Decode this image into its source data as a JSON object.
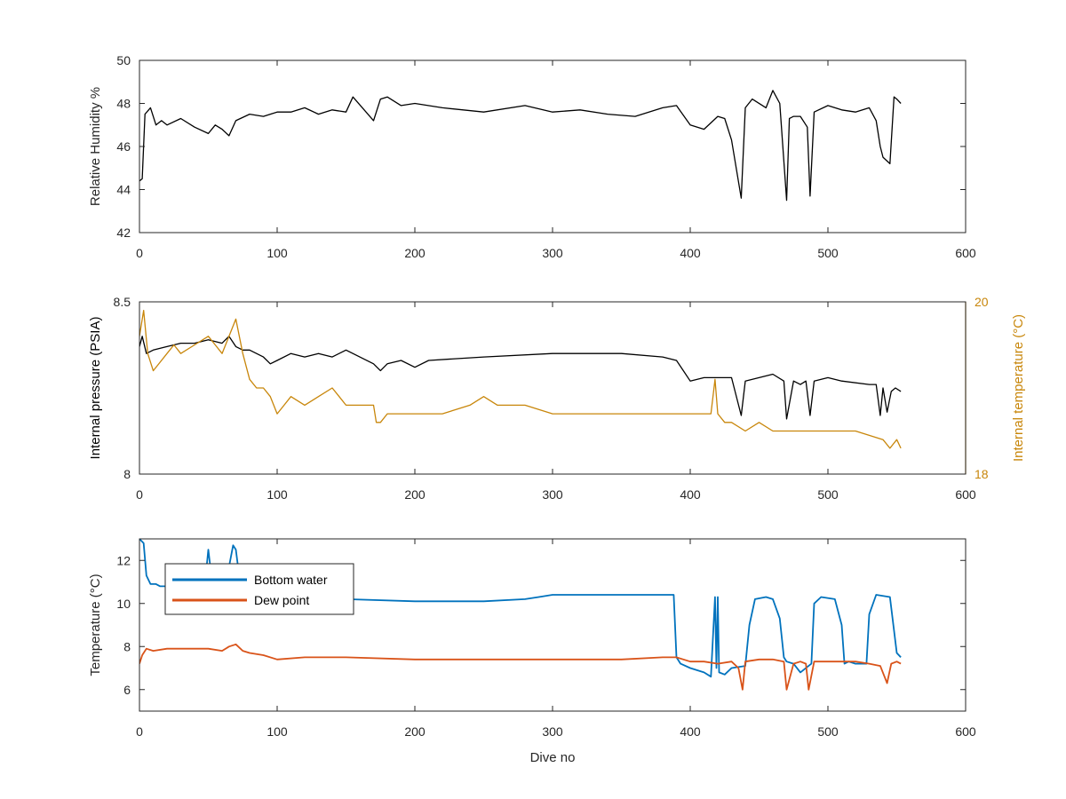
{
  "chart_data": [
    {
      "type": "line",
      "title": "",
      "xlabel": "",
      "ylabel": "Relative Humidity %",
      "xlim": [
        0,
        600
      ],
      "ylim": [
        42,
        50
      ],
      "xticks": [
        0,
        100,
        200,
        300,
        400,
        500,
        600
      ],
      "yticks": [
        42,
        44,
        46,
        48,
        50
      ],
      "grid": false,
      "series": [
        {
          "color": "#000000",
          "x": [
            0,
            2,
            4,
            8,
            12,
            16,
            20,
            30,
            40,
            50,
            55,
            60,
            65,
            70,
            80,
            90,
            100,
            110,
            120,
            130,
            140,
            150,
            155,
            170,
            175,
            180,
            190,
            200,
            220,
            250,
            280,
            300,
            320,
            340,
            360,
            380,
            390,
            400,
            410,
            420,
            425,
            430,
            437,
            440,
            445,
            455,
            460,
            465,
            470,
            472,
            475,
            480,
            485,
            487,
            490,
            500,
            510,
            520,
            530,
            535,
            538,
            540,
            545,
            548,
            550,
            553
          ],
          "y": [
            44.4,
            44.5,
            47.5,
            47.8,
            47.0,
            47.2,
            47.0,
            47.3,
            46.9,
            46.6,
            47.0,
            46.8,
            46.5,
            47.2,
            47.5,
            47.4,
            47.6,
            47.6,
            47.8,
            47.5,
            47.7,
            47.6,
            48.3,
            47.2,
            48.2,
            48.3,
            47.9,
            48.0,
            47.8,
            47.6,
            47.9,
            47.6,
            47.7,
            47.5,
            47.4,
            47.8,
            47.9,
            47.0,
            46.8,
            47.4,
            47.3,
            46.3,
            43.6,
            47.8,
            48.2,
            47.8,
            48.6,
            48.0,
            43.5,
            47.3,
            47.4,
            47.4,
            46.9,
            43.7,
            47.6,
            47.9,
            47.7,
            47.6,
            47.8,
            47.2,
            46.0,
            45.5,
            45.2,
            48.3,
            48.2,
            48.0
          ]
        }
      ]
    },
    {
      "type": "line",
      "title": "",
      "xlabel": "",
      "ylabel": "Internal pressure (PSIA)",
      "y2label": "Internal temperature (°C)",
      "xlim": [
        0,
        600
      ],
      "ylim": [
        8,
        8.5
      ],
      "y2lim": [
        18,
        20
      ],
      "xticks": [
        0,
        100,
        200,
        300,
        400,
        500,
        600
      ],
      "yticks": [
        8,
        8.5
      ],
      "y2ticks": [
        18,
        20
      ],
      "grid": false,
      "series": [
        {
          "axis": "left",
          "color": "#000000",
          "x": [
            0,
            2,
            5,
            10,
            20,
            30,
            40,
            50,
            60,
            65,
            70,
            75,
            80,
            90,
            95,
            100,
            110,
            120,
            130,
            140,
            150,
            160,
            170,
            175,
            180,
            190,
            200,
            210,
            250,
            300,
            350,
            380,
            390,
            395,
            400,
            410,
            420,
            430,
            437,
            440,
            450,
            460,
            468,
            470,
            475,
            480,
            484,
            487,
            490,
            500,
            510,
            530,
            535,
            538,
            540,
            543,
            546,
            549,
            553
          ],
          "y": [
            8.37,
            8.4,
            8.35,
            8.36,
            8.37,
            8.38,
            8.38,
            8.39,
            8.38,
            8.4,
            8.37,
            8.36,
            8.36,
            8.34,
            8.32,
            8.33,
            8.35,
            8.34,
            8.35,
            8.34,
            8.36,
            8.34,
            8.32,
            8.3,
            8.32,
            8.33,
            8.31,
            8.33,
            8.34,
            8.35,
            8.35,
            8.34,
            8.33,
            8.3,
            8.27,
            8.28,
            8.28,
            8.28,
            8.17,
            8.27,
            8.28,
            8.29,
            8.27,
            8.16,
            8.27,
            8.26,
            8.27,
            8.17,
            8.27,
            8.28,
            8.27,
            8.26,
            8.26,
            8.17,
            8.25,
            8.18,
            8.24,
            8.25,
            8.24
          ]
        },
        {
          "axis": "right",
          "color": "#c8860a",
          "x": [
            0,
            3,
            6,
            10,
            15,
            20,
            25,
            30,
            40,
            50,
            55,
            60,
            65,
            70,
            75,
            80,
            85,
            90,
            95,
            100,
            105,
            110,
            120,
            130,
            140,
            145,
            150,
            160,
            170,
            172,
            175,
            180,
            200,
            220,
            240,
            250,
            260,
            270,
            280,
            300,
            320,
            340,
            360,
            380,
            390,
            400,
            410,
            415,
            418,
            420,
            425,
            430,
            440,
            450,
            460,
            470,
            480,
            500,
            520,
            540,
            545,
            550,
            553
          ],
          "y": [
            19.6,
            19.9,
            19.4,
            19.2,
            19.3,
            19.4,
            19.5,
            19.4,
            19.5,
            19.6,
            19.5,
            19.4,
            19.6,
            19.8,
            19.4,
            19.1,
            19.0,
            19.0,
            18.9,
            18.7,
            18.8,
            18.9,
            18.8,
            18.9,
            19.0,
            18.9,
            18.8,
            18.8,
            18.8,
            18.6,
            18.6,
            18.7,
            18.7,
            18.7,
            18.8,
            18.9,
            18.8,
            18.8,
            18.8,
            18.7,
            18.7,
            18.7,
            18.7,
            18.7,
            18.7,
            18.7,
            18.7,
            18.7,
            19.1,
            18.7,
            18.6,
            18.6,
            18.5,
            18.6,
            18.5,
            18.5,
            18.5,
            18.5,
            18.5,
            18.4,
            18.3,
            18.4,
            18.3
          ]
        }
      ]
    },
    {
      "type": "line",
      "title": "",
      "xlabel": "Dive no",
      "ylabel": "Temperature (°C)",
      "xlim": [
        0,
        600
      ],
      "ylim": [
        5,
        13
      ],
      "xticks": [
        0,
        100,
        200,
        300,
        400,
        500,
        600
      ],
      "yticks": [
        6,
        8,
        10,
        12
      ],
      "grid": false,
      "legend": "top-left",
      "series": [
        {
          "name": "Bottom water",
          "color": "#0072bd",
          "x": [
            0,
            3,
            5,
            8,
            12,
            15,
            20,
            25,
            30,
            40,
            48,
            50,
            52,
            55,
            65,
            68,
            70,
            72,
            80,
            100,
            150,
            200,
            250,
            280,
            290,
            300,
            350,
            380,
            388,
            390,
            393,
            400,
            410,
            415,
            418,
            419,
            420,
            421,
            425,
            430,
            440,
            443,
            447,
            455,
            460,
            465,
            468,
            470,
            475,
            480,
            488,
            490,
            495,
            505,
            510,
            512,
            515,
            520,
            528,
            530,
            535,
            545,
            550,
            553
          ],
          "y": [
            13,
            12.8,
            11.3,
            10.9,
            10.9,
            10.8,
            10.8,
            11.3,
            11.0,
            11.2,
            11.2,
            12.5,
            11.4,
            11.5,
            11.7,
            12.7,
            12.5,
            11.5,
            11.0,
            10.6,
            10.2,
            10.1,
            10.1,
            10.2,
            10.3,
            10.4,
            10.4,
            10.4,
            10.4,
            7.5,
            7.2,
            7.0,
            6.8,
            6.6,
            10.3,
            7.0,
            10.3,
            6.8,
            6.7,
            7.0,
            7.1,
            9.0,
            10.2,
            10.3,
            10.2,
            9.3,
            7.5,
            7.3,
            7.2,
            6.8,
            7.2,
            10.0,
            10.3,
            10.2,
            9.0,
            7.2,
            7.3,
            7.2,
            7.2,
            9.5,
            10.4,
            10.3,
            7.7,
            7.5
          ]
        },
        {
          "name": "Dew point",
          "color": "#d95319",
          "x": [
            0,
            2,
            5,
            10,
            20,
            30,
            40,
            50,
            60,
            65,
            70,
            75,
            80,
            90,
            100,
            120,
            150,
            200,
            250,
            300,
            350,
            380,
            390,
            400,
            410,
            420,
            430,
            435,
            438,
            440,
            450,
            460,
            468,
            470,
            475,
            480,
            484,
            486,
            490,
            500,
            520,
            530,
            538,
            543,
            546,
            550,
            553
          ],
          "y": [
            7.2,
            7.6,
            7.9,
            7.8,
            7.9,
            7.9,
            7.9,
            7.9,
            7.8,
            8.0,
            8.1,
            7.8,
            7.7,
            7.6,
            7.4,
            7.5,
            7.5,
            7.4,
            7.4,
            7.4,
            7.4,
            7.5,
            7.5,
            7.3,
            7.3,
            7.2,
            7.3,
            7.0,
            6.0,
            7.3,
            7.4,
            7.4,
            7.3,
            6.0,
            7.2,
            7.3,
            7.2,
            6.0,
            7.3,
            7.3,
            7.3,
            7.2,
            7.1,
            6.3,
            7.2,
            7.3,
            7.2
          ]
        }
      ]
    }
  ]
}
